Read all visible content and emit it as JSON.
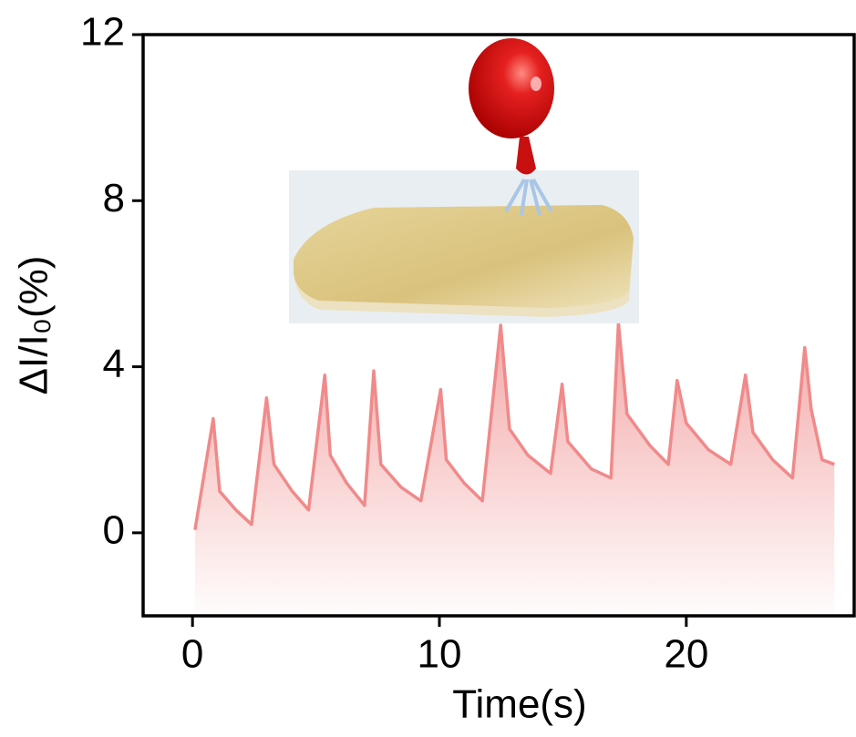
{
  "chart_data": {
    "type": "line",
    "x_label": "Time(s)",
    "y_label": "ΔI/I₀(%)",
    "x": [
      0.1,
      0.84,
      1.1,
      1.76,
      2.39,
      3.0,
      3.3,
      4.04,
      4.7,
      5.36,
      5.58,
      6.24,
      6.97,
      7.34,
      7.63,
      8.44,
      9.25,
      10.05,
      10.28,
      11.0,
      11.74,
      12.48,
      12.84,
      13.58,
      14.5,
      14.97,
      15.2,
      16.15,
      16.95,
      17.25,
      17.6,
      18.53,
      19.27,
      19.63,
      20.0,
      20.9,
      21.8,
      22.4,
      22.7,
      23.5,
      24.3,
      24.8,
      25.06,
      25.5,
      26.0
    ],
    "values": [
      0.07,
      2.75,
      1.0,
      0.55,
      0.2,
      3.25,
      1.65,
      1.0,
      0.55,
      3.8,
      1.87,
      1.2,
      0.66,
      3.9,
      1.65,
      1.1,
      0.77,
      3.45,
      1.76,
      1.2,
      0.77,
      5.0,
      2.5,
      1.87,
      1.43,
      3.58,
      2.2,
      1.54,
      1.32,
      5.05,
      2.86,
      2.1,
      1.65,
      3.67,
      2.64,
      2.0,
      1.65,
      3.8,
      2.42,
      1.76,
      1.32,
      4.46,
      2.97,
      1.76,
      1.65
    ],
    "color": "#f08a8a",
    "area": true,
    "xlim": [
      -2,
      26.8
    ],
    "xticks": [
      0,
      10,
      20
    ],
    "ylim": [
      -2,
      12
    ],
    "yticks": [
      0,
      4,
      8,
      12
    ]
  }
}
